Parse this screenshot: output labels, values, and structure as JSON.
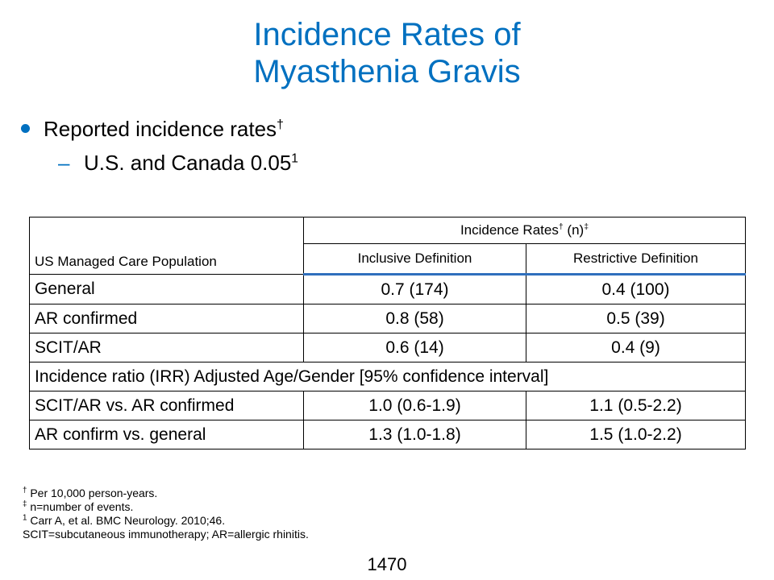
{
  "title_line1": "Incidence Rates of",
  "title_line2": "Myasthenia Gravis",
  "bullets": {
    "main_text": "Reported incidence rates",
    "main_sup": "†",
    "sub_dash": "–",
    "sub_text": "U.S. and Canada 0.05",
    "sub_sup": "1"
  },
  "table": {
    "population_header": "US Managed Care Population",
    "group_header": "Incidence Rates",
    "group_header_sup1": "†",
    "group_header_mid": " (n)",
    "group_header_sup2": "‡",
    "col_inclusive": "Inclusive Definition",
    "col_restrictive": "Restrictive Definition",
    "rows": [
      {
        "label": "General",
        "inclusive": "0.7 (174)",
        "restrictive": "0.4 (100)"
      },
      {
        "label": "AR confirmed",
        "inclusive": "0.8 (58)",
        "restrictive": "0.5 (39)"
      },
      {
        "label": "SCIT/AR",
        "inclusive": "0.6 (14)",
        "restrictive": "0.4 (9)"
      }
    ],
    "section_label": "Incidence ratio (IRR) Adjusted Age/Gender [95% confidence interval]",
    "ratio_rows": [
      {
        "label": "SCIT/AR vs. AR confirmed",
        "inclusive": "1.0 (0.6-1.9)",
        "restrictive": "1.1 (0.5-2.2)"
      },
      {
        "label": "AR confirm vs. general",
        "inclusive": "1.3 (1.0-1.8)",
        "restrictive": "1.5 (1.0-2.2)"
      }
    ]
  },
  "footnotes": [
    {
      "sup": "†",
      "text": " Per 10,000 person-years."
    },
    {
      "sup": "‡",
      "text": " n=number of events."
    },
    {
      "sup": "1",
      "text": " Carr A, et al. BMC Neurology. 2010;46."
    },
    {
      "sup": "",
      "text": "SCIT=subcutaneous immunotherapy; AR=allergic rhinitis."
    }
  ],
  "page_number": "1470",
  "colors": {
    "accent": "#0070c0",
    "rule": "#2f6fbd"
  }
}
